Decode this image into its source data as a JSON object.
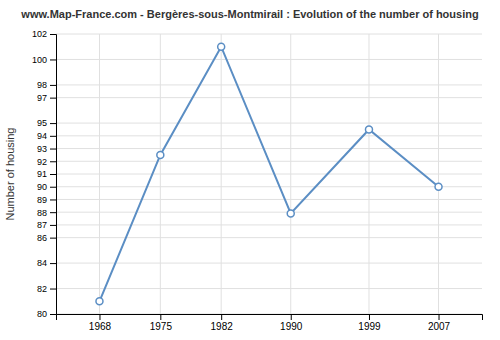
{
  "chart_data": {
    "type": "line",
    "title": "www.Map-France.com - Bergères-sous-Montmirail : Evolution of the number of housing",
    "ylabel": "Number of housing",
    "x": [
      1968,
      1975,
      1982,
      1990,
      1999,
      2007
    ],
    "values": [
      81.0,
      92.5,
      101.0,
      87.9,
      94.5,
      90.0
    ],
    "xlim": [
      1963,
      2012
    ],
    "xticks": [
      1968,
      1975,
      1982,
      1990,
      1999,
      2007
    ],
    "ylim": [
      80,
      102
    ],
    "yticks": [
      80,
      82,
      84,
      86,
      87,
      88,
      89,
      90,
      91,
      92,
      93,
      94,
      95,
      97,
      98,
      100,
      102
    ],
    "color": "#5b8ec4",
    "marker": "circle",
    "grid": true
  }
}
